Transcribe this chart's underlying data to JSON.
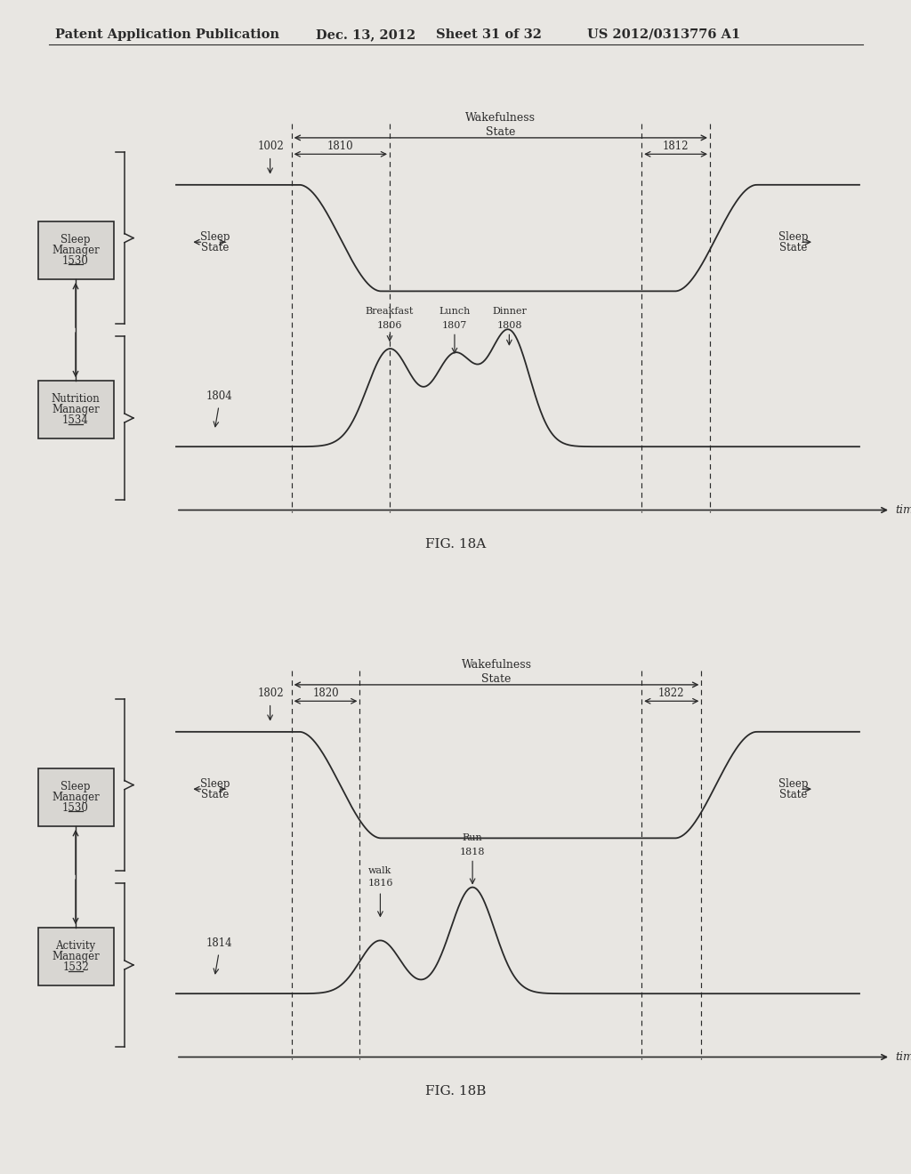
{
  "bg_color": "#e8e6e2",
  "header_text": "Patent Application Publication",
  "header_date": "Dec. 13, 2012",
  "header_sheet": "Sheet 31 of 32",
  "header_patent": "US 2012/0313776 A1",
  "fig18a_label": "FIG. 18A",
  "fig18b_label": "FIG. 18B",
  "line_color": "#2a2a2a",
  "box_fill": "#d8d6d2"
}
